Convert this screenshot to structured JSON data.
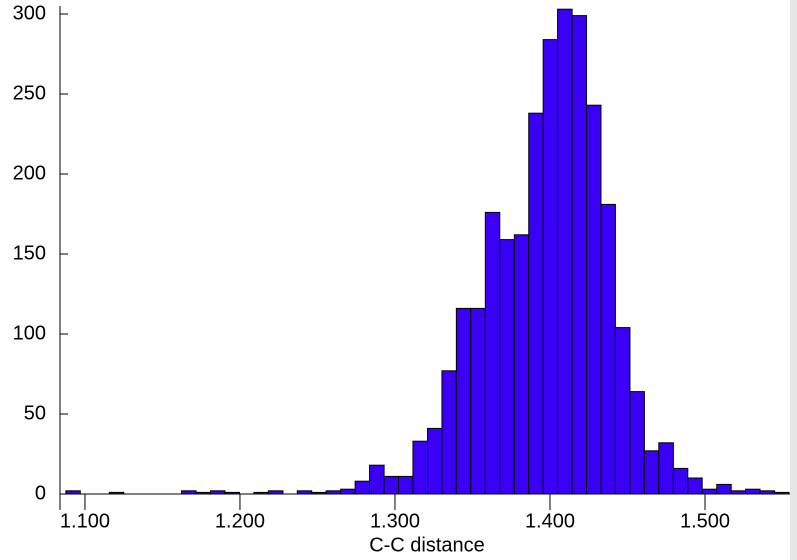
{
  "chart_data": {
    "type": "histogram",
    "x_label": "C-C distance",
    "bins": [
      1.0877,
      1.097,
      1.1063,
      1.1157,
      1.125,
      1.1344,
      1.1437,
      1.153,
      1.1623,
      1.1717,
      1.181,
      1.1903,
      1.1997,
      1.209,
      1.2183,
      1.2277,
      1.237,
      1.2463,
      1.2556,
      1.265,
      1.2743,
      1.2836,
      1.293,
      1.3023,
      1.3116,
      1.321,
      1.3303,
      1.3396,
      1.3489,
      1.3583,
      1.3676,
      1.377,
      1.3863,
      1.3956,
      1.4049,
      1.4143,
      1.4236,
      1.4329,
      1.4422,
      1.4516,
      1.4609,
      1.4702,
      1.4796,
      1.4889,
      1.4982,
      1.5076,
      1.5169,
      1.5262,
      1.5355,
      1.5449,
      1.5542
    ],
    "values": [
      2,
      0,
      0,
      1,
      0,
      0,
      0,
      0,
      2,
      1,
      2,
      1,
      0,
      1,
      2,
      0,
      2,
      1,
      2,
      3,
      8,
      18,
      11,
      11,
      33,
      41,
      77,
      116,
      116,
      176,
      159,
      162,
      238,
      284,
      303,
      299,
      243,
      181,
      104,
      64,
      27,
      32,
      16,
      10,
      3,
      6,
      2,
      3,
      2,
      1
    ],
    "color": "#3a00f5",
    "xlim": [
      1.0839,
      1.5542
    ],
    "ylim": [
      0,
      305
    ],
    "xticks": [
      {
        "value": 1.1,
        "label": "1.100"
      },
      {
        "value": 1.2,
        "label": "1.200"
      },
      {
        "value": 1.3,
        "label": "1.300"
      },
      {
        "value": 1.4,
        "label": "1.400"
      },
      {
        "value": 1.5,
        "label": "1.500"
      }
    ],
    "yticks": [
      0,
      50,
      100,
      150,
      200,
      250,
      300
    ]
  }
}
